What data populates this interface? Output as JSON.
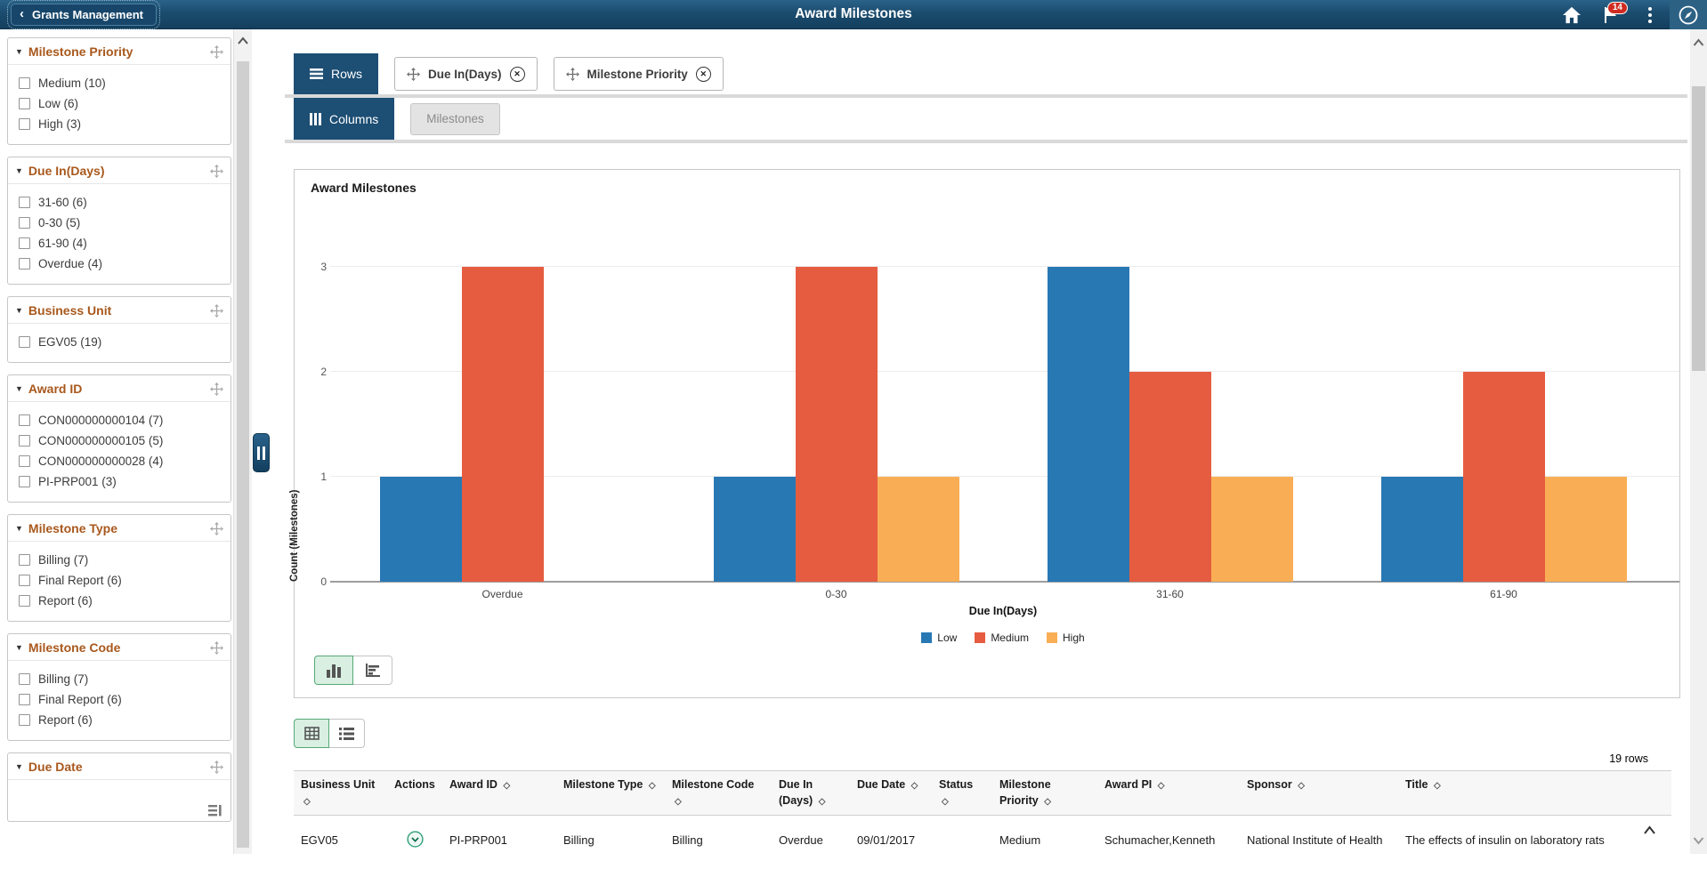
{
  "header": {
    "back_button_label": "Grants Management",
    "title": "Award Milestones",
    "notification_count": "14"
  },
  "icons": {
    "back_chevron": "‹",
    "facet_collapse_triangle": "▼",
    "sort_indicator": "◇",
    "chip_remove": "✕",
    "header_right": [
      "home-icon",
      "flag-icon",
      "kebab-menu-icon",
      "navbar-compass-icon"
    ]
  },
  "sidebar": {
    "facets": [
      {
        "title": "Milestone Priority",
        "items": [
          "Medium (10)",
          "Low (6)",
          "High (3)"
        ]
      },
      {
        "title": "Due In(Days)",
        "items": [
          "31-60 (6)",
          "0-30 (5)",
          "61-90 (4)",
          "Overdue (4)"
        ]
      },
      {
        "title": "Business Unit",
        "items": [
          "EGV05 (19)"
        ]
      },
      {
        "title": "Award ID",
        "items": [
          "CON000000000104 (7)",
          "CON000000000105 (5)",
          "CON000000000028 (4)",
          "PI-PRP001 (3)"
        ]
      },
      {
        "title": "Milestone Type",
        "items": [
          "Billing (7)",
          "Final Report (6)",
          "Report (6)"
        ]
      },
      {
        "title": "Milestone Code",
        "items": [
          "Billing (7)",
          "Final Report (6)",
          "Report (6)"
        ]
      },
      {
        "title": "Due Date",
        "items": [],
        "has_slider_icon": true
      }
    ]
  },
  "pivot": {
    "rows_label": "Rows",
    "row_chips": [
      "Due In(Days)",
      "Milestone Priority"
    ],
    "columns_label": "Columns",
    "column_chips": [
      "Milestones"
    ]
  },
  "chart_data": {
    "type": "bar",
    "title": "Award Milestones",
    "categories": [
      "Overdue",
      "0-30",
      "31-60",
      "61-90"
    ],
    "series": [
      {
        "name": "Low",
        "color": "#2878b4",
        "values": [
          1,
          1,
          3,
          1
        ]
      },
      {
        "name": "Medium",
        "color": "#e65c40",
        "values": [
          3,
          3,
          2,
          2
        ]
      },
      {
        "name": "High",
        "color": "#f9ae55",
        "values": [
          0,
          1,
          1,
          1
        ]
      }
    ],
    "xlabel": "Due In(Days)",
    "ylabel": "Count (Milestones)",
    "yticks": [
      0,
      1,
      2,
      3
    ],
    "ylim": [
      0,
      3.5
    ],
    "legend_position": "bottom",
    "grid": true
  },
  "chart_toolbar": {
    "options": [
      "vertical-bar-chart-icon",
      "horizontal-bar-chart-icon"
    ],
    "selected": "vertical-bar-chart-icon"
  },
  "view_toolbar": {
    "options": [
      "grid-view-icon",
      "list-view-icon"
    ],
    "selected": "grid-view-icon"
  },
  "table": {
    "row_count_label": "19 rows",
    "columns": [
      {
        "label": "Business Unit",
        "sortable": true
      },
      {
        "label": "Actions",
        "sortable": false
      },
      {
        "label": "Award ID",
        "sortable": true
      },
      {
        "label": "Milestone Type",
        "sortable": true
      },
      {
        "label": "Milestone Code",
        "sortable": true
      },
      {
        "label": "Due In (Days)",
        "sortable": true
      },
      {
        "label": "Due Date",
        "sortable": true
      },
      {
        "label": "Status",
        "sortable": true
      },
      {
        "label": "Milestone Priority",
        "sortable": true
      },
      {
        "label": "Award PI",
        "sortable": true
      },
      {
        "label": "Sponsor",
        "sortable": true
      },
      {
        "label": "Title",
        "sortable": true
      }
    ],
    "rows": [
      {
        "cells": [
          "EGV05",
          "",
          "PI-PRP001",
          "Billing",
          "Billing",
          "Overdue",
          "09/01/2017",
          "",
          "Medium",
          "Schumacher,Kenneth",
          "National Institute of Health",
          "The effects of insulin on laboratory rats"
        ],
        "action_icon": "chevron-down-circle-icon"
      }
    ]
  },
  "colors": {
    "header_bg": "#1b4a6b",
    "facet_title": "#a8581c",
    "pivot_block_bg": "#1d4e74",
    "selected_toggle_bg": "#d9efe2",
    "selected_toggle_border": "#55a877",
    "badge": "#d02b20",
    "series_low": "#2878b4",
    "series_medium": "#e65c40",
    "series_high": "#f9ae55"
  }
}
